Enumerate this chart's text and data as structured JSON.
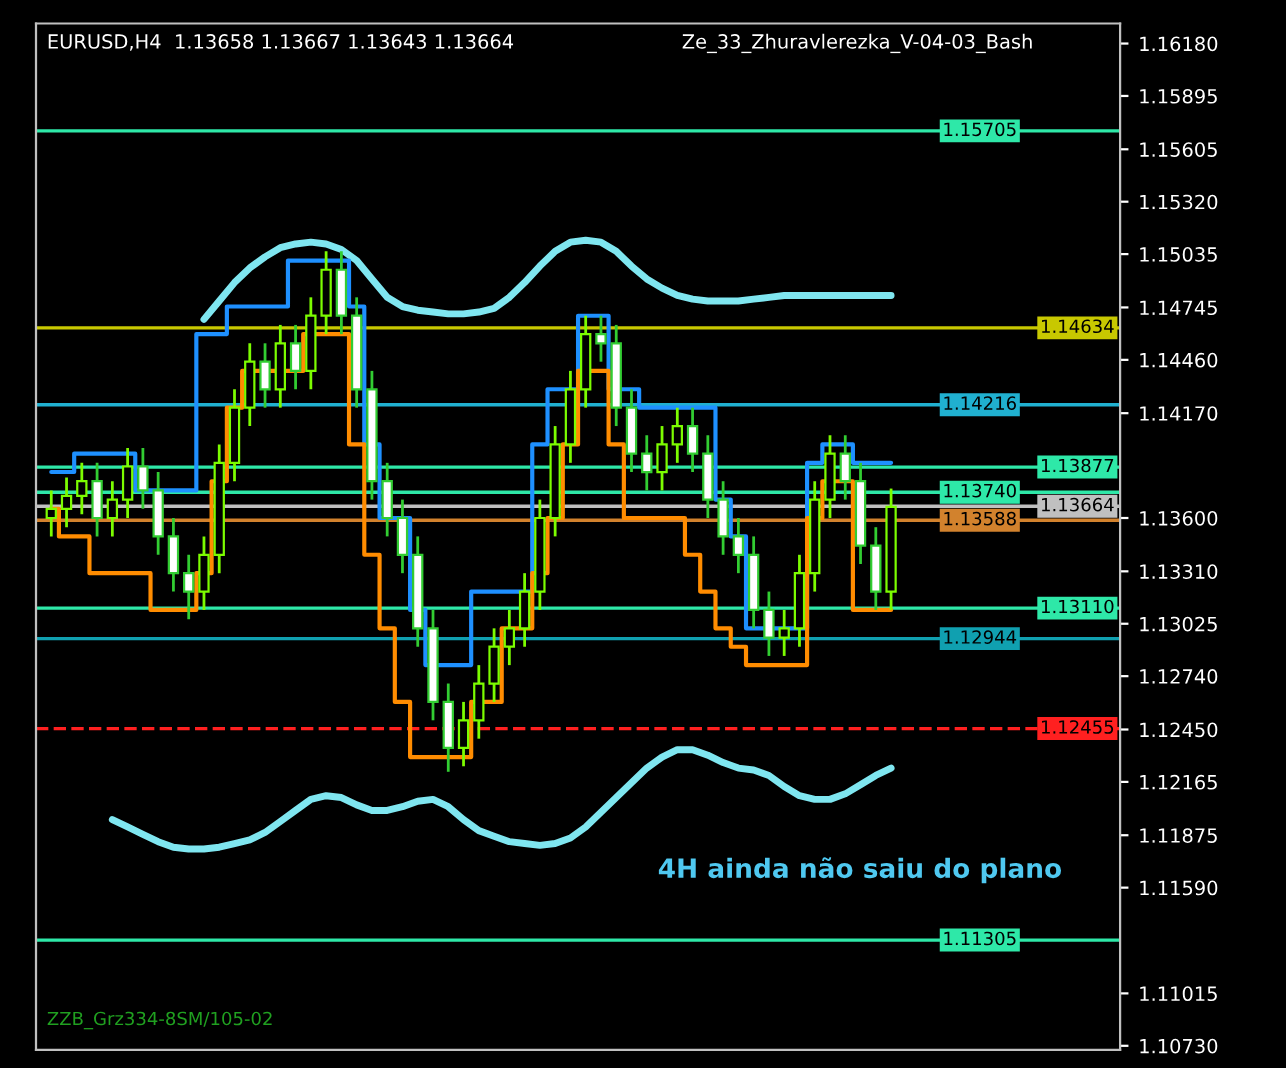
{
  "chart_data": {
    "type": "candlestick",
    "title": "EURUSD,H4  1.13658 1.13667 1.13643 1.13664",
    "annotations": [
      "Ze_33_Zhuravlerezka_V-04-03_Bash",
      "4H ainda não saiu do plano",
      "ZZB_Grz334-8SM/105-02"
    ],
    "categories": [
      null,
      null,
      null,
      null,
      null,
      null,
      null,
      null,
      null,
      null,
      null,
      null,
      null,
      null,
      null,
      null,
      null,
      null,
      null,
      null,
      null,
      null,
      null,
      null,
      null,
      null,
      null,
      null,
      null,
      null,
      null,
      null,
      null,
      null,
      null,
      null,
      null,
      null,
      null,
      null,
      null,
      null,
      null,
      null,
      null,
      null,
      null,
      null,
      null,
      null,
      null,
      null,
      null,
      null,
      null,
      null
    ],
    "ohlc": [
      [
        1.136,
        1.1375,
        1.135,
        1.1365
      ],
      [
        1.1365,
        1.1382,
        1.1355,
        1.1372
      ],
      [
        1.1372,
        1.139,
        1.1362,
        1.138
      ],
      [
        1.138,
        1.139,
        1.135,
        1.136
      ],
      [
        1.136,
        1.138,
        1.135,
        1.137
      ],
      [
        1.137,
        1.1398,
        1.136,
        1.1388
      ],
      [
        1.1388,
        1.1398,
        1.1365,
        1.1375
      ],
      [
        1.1375,
        1.1385,
        1.134,
        1.135
      ],
      [
        1.135,
        1.136,
        1.132,
        1.133
      ],
      [
        1.133,
        1.134,
        1.1305,
        1.132
      ],
      [
        1.132,
        1.135,
        1.131,
        1.134
      ],
      [
        1.134,
        1.14,
        1.133,
        1.139
      ],
      [
        1.139,
        1.143,
        1.138,
        1.142
      ],
      [
        1.142,
        1.1455,
        1.141,
        1.1445
      ],
      [
        1.1445,
        1.1455,
        1.142,
        1.143
      ],
      [
        1.143,
        1.1465,
        1.142,
        1.1455
      ],
      [
        1.1455,
        1.1465,
        1.143,
        1.144
      ],
      [
        1.144,
        1.148,
        1.143,
        1.147
      ],
      [
        1.147,
        1.1505,
        1.146,
        1.1495
      ],
      [
        1.1495,
        1.1505,
        1.146,
        1.147
      ],
      [
        1.147,
        1.148,
        1.142,
        1.143
      ],
      [
        1.143,
        1.144,
        1.137,
        1.138
      ],
      [
        1.138,
        1.139,
        1.135,
        1.136
      ],
      [
        1.136,
        1.137,
        1.133,
        1.134
      ],
      [
        1.134,
        1.135,
        1.129,
        1.13
      ],
      [
        1.13,
        1.131,
        1.125,
        1.126
      ],
      [
        1.126,
        1.127,
        1.1222,
        1.1235
      ],
      [
        1.1235,
        1.126,
        1.1225,
        1.125
      ],
      [
        1.125,
        1.128,
        1.124,
        1.127
      ],
      [
        1.127,
        1.13,
        1.126,
        1.129
      ],
      [
        1.129,
        1.131,
        1.128,
        1.13
      ],
      [
        1.13,
        1.133,
        1.129,
        1.132
      ],
      [
        1.132,
        1.137,
        1.131,
        1.136
      ],
      [
        1.136,
        1.141,
        1.135,
        1.14
      ],
      [
        1.14,
        1.144,
        1.139,
        1.143
      ],
      [
        1.143,
        1.147,
        1.142,
        1.146
      ],
      [
        1.146,
        1.147,
        1.1445,
        1.1455
      ],
      [
        1.1455,
        1.1465,
        1.141,
        1.142
      ],
      [
        1.142,
        1.143,
        1.1385,
        1.1395
      ],
      [
        1.1395,
        1.1405,
        1.1375,
        1.1385
      ],
      [
        1.1385,
        1.141,
        1.1375,
        1.14
      ],
      [
        1.14,
        1.142,
        1.139,
        1.141
      ],
      [
        1.141,
        1.142,
        1.1385,
        1.1395
      ],
      [
        1.1395,
        1.1405,
        1.136,
        1.137
      ],
      [
        1.137,
        1.138,
        1.134,
        1.135
      ],
      [
        1.135,
        1.136,
        1.133,
        1.134
      ],
      [
        1.134,
        1.135,
        1.13,
        1.131
      ],
      [
        1.131,
        1.132,
        1.1285,
        1.1295
      ],
      [
        1.1295,
        1.131,
        1.1285,
        1.13
      ],
      [
        1.13,
        1.134,
        1.129,
        1.133
      ],
      [
        1.133,
        1.138,
        1.132,
        1.137
      ],
      [
        1.137,
        1.1405,
        1.136,
        1.1395
      ],
      [
        1.1395,
        1.1405,
        1.137,
        1.138
      ],
      [
        1.138,
        1.139,
        1.1335,
        1.1345
      ],
      [
        1.1345,
        1.1355,
        1.131,
        1.132
      ],
      [
        1.132,
        1.1376,
        1.131,
        1.1366
      ]
    ],
    "series": [
      {
        "type": "line",
        "color": "#7fe6f0",
        "values": [
          null,
          null,
          null,
          null,
          null,
          null,
          null,
          null,
          null,
          null,
          1.1468,
          1.1478,
          1.1488,
          1.1496,
          1.1502,
          1.1507,
          1.1509,
          1.151,
          1.1509,
          1.1506,
          1.15,
          1.149,
          1.148,
          1.1475,
          1.1473,
          1.1472,
          1.1471,
          1.1471,
          1.1472,
          1.1474,
          1.148,
          1.1488,
          1.1497,
          1.1505,
          1.151,
          1.1511,
          1.151,
          1.1505,
          1.1497,
          1.149,
          1.1485,
          1.1481,
          1.1479,
          1.1478,
          1.1478,
          1.1478,
          1.1479,
          1.148,
          1.1481,
          1.1481,
          1.1481,
          1.1481,
          1.1481,
          1.1481,
          1.1481,
          1.1481
        ]
      },
      {
        "type": "line",
        "color": "#7fe6f0",
        "values": [
          null,
          null,
          null,
          null,
          1.1196,
          1.1192,
          1.1188,
          1.1184,
          1.1181,
          1.118,
          1.118,
          1.1181,
          1.1183,
          1.1185,
          1.1189,
          1.1195,
          1.1201,
          1.1207,
          1.1209,
          1.1208,
          1.1204,
          1.1201,
          1.1201,
          1.1203,
          1.1206,
          1.1207,
          1.1203,
          1.1196,
          1.119,
          1.1187,
          1.1184,
          1.1183,
          1.1182,
          1.1183,
          1.1186,
          1.1192,
          1.12,
          1.1208,
          1.1216,
          1.1224,
          1.123,
          1.1234,
          1.1234,
          1.1231,
          1.1227,
          1.1224,
          1.1223,
          1.122,
          1.1214,
          1.1209,
          1.1207,
          1.1207,
          1.121,
          1.1215,
          1.122,
          1.1224
        ]
      },
      {
        "type": "step",
        "color": "#1e90ff",
        "values": [
          1.1385,
          1.1385,
          1.1395,
          1.1395,
          1.1395,
          1.1395,
          1.1375,
          1.1375,
          1.1375,
          1.1375,
          1.146,
          1.146,
          1.1475,
          1.1475,
          1.1475,
          1.1475,
          1.15,
          1.15,
          1.15,
          1.15,
          1.1475,
          1.14,
          1.136,
          1.136,
          1.131,
          1.128,
          1.128,
          1.128,
          1.132,
          1.132,
          1.132,
          1.132,
          1.14,
          1.143,
          1.143,
          1.147,
          1.147,
          1.143,
          1.143,
          1.142,
          1.142,
          1.142,
          1.142,
          1.142,
          1.137,
          1.135,
          1.13,
          1.13,
          1.13,
          1.13,
          1.139,
          1.14,
          1.14,
          1.139,
          1.139,
          1.139
        ]
      },
      {
        "type": "step",
        "color": "#ff8c00",
        "values": [
          1.1365,
          1.135,
          1.135,
          1.133,
          1.133,
          1.133,
          1.133,
          1.131,
          1.131,
          1.131,
          1.133,
          1.138,
          1.142,
          1.144,
          1.144,
          1.144,
          1.144,
          1.146,
          1.146,
          1.146,
          1.14,
          1.134,
          1.13,
          1.126,
          1.123,
          1.123,
          1.123,
          1.123,
          1.126,
          1.126,
          1.13,
          1.13,
          1.133,
          1.136,
          1.14,
          1.144,
          1.144,
          1.14,
          1.136,
          1.136,
          1.136,
          1.136,
          1.134,
          1.132,
          1.13,
          1.129,
          1.128,
          1.128,
          1.128,
          1.128,
          1.136,
          1.138,
          1.138,
          1.131,
          1.131,
          1.131
        ]
      }
    ],
    "ref_lines": [
      {
        "axis": "y",
        "value": 1.15705,
        "label": "1.15705",
        "color": "#2ee8a8"
      },
      {
        "axis": "y",
        "value": 1.14634,
        "label": "1.14634",
        "color": "#c8c800"
      },
      {
        "axis": "y",
        "value": 1.14216,
        "label": "1.14216",
        "color": "#20b0d0"
      },
      {
        "axis": "y",
        "value": 1.13877,
        "label": "1.13877",
        "color": "#2ee8a8"
      },
      {
        "axis": "y",
        "value": 1.1374,
        "label": "1.13740",
        "color": "#2ee8a8"
      },
      {
        "axis": "y",
        "value": 1.13664,
        "label": "1.13664",
        "color": "#c0c0c0"
      },
      {
        "axis": "y",
        "value": 1.13588,
        "label": "1.13588",
        "color": "#d2822d"
      },
      {
        "axis": "y",
        "value": 1.1311,
        "label": "1.13110",
        "color": "#2ee8a8"
      },
      {
        "axis": "y",
        "value": 1.12944,
        "label": "1.12944",
        "color": "#10a0b0"
      },
      {
        "axis": "y",
        "value": 1.12455,
        "label": "1.12455",
        "color": "#ff2020",
        "line_style": "dashed"
      },
      {
        "axis": "y",
        "value": 1.11305,
        "label": "1.11305",
        "color": "#2ee8a8"
      }
    ],
    "ylim": [
      1.10708,
      1.16289
    ],
    "yticks": [
      {
        "value": 1.1618,
        "label": "1.16180"
      },
      1.15895,
      1.15605,
      {
        "value": 1.1532,
        "label": "1.15320"
      },
      1.15035,
      1.14745,
      {
        "value": 1.1446,
        "label": "1.14460"
      },
      {
        "value": 1.1417,
        "label": "1.14170"
      },
      {
        "value": 1.136,
        "label": "1.13600"
      },
      {
        "value": 1.1331,
        "label": "1.13310"
      },
      1.13025,
      {
        "value": 1.1274,
        "label": "1.12740"
      },
      {
        "value": 1.1245,
        "label": "1.12450"
      },
      1.12165,
      1.11875,
      {
        "value": 1.1159,
        "label": "1.11590"
      },
      1.11015,
      {
        "value": 1.1073,
        "label": "1.10730"
      }
    ],
    "grid": false,
    "legend": false
  }
}
